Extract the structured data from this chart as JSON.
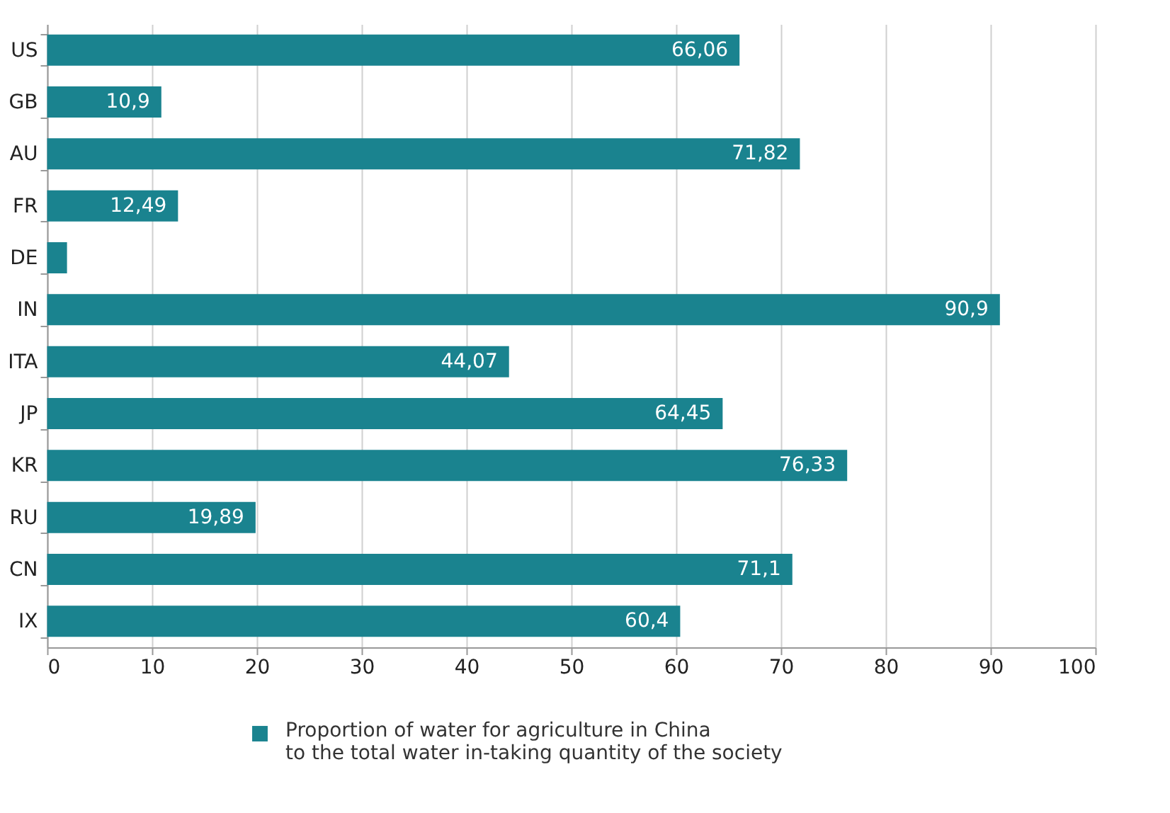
{
  "chart_data": {
    "type": "bar",
    "orientation": "horizontal",
    "categories": [
      "US",
      "GB",
      "AU",
      "FR",
      "DE",
      "IN",
      "ITA",
      "JP",
      "KR",
      "RU",
      "CN",
      "IX"
    ],
    "series": [
      {
        "name": "Proportion of water for agriculture in China\nto the total water in-taking quantity of the society",
        "color": "#1a838f",
        "values": [
          66.06,
          10.9,
          71.82,
          12.49,
          1.9,
          90.9,
          44.07,
          64.45,
          76.33,
          19.89,
          71.1,
          60.4
        ],
        "value_labels": [
          "66,06",
          "10,9",
          "71,82",
          "12,49",
          null,
          "90,9",
          "44,07",
          "64,45",
          "76,33",
          "19,89",
          "71,1",
          "60,4"
        ]
      }
    ],
    "xlim": [
      0,
      100
    ],
    "xticks": [
      0,
      10,
      20,
      30,
      40,
      50,
      60,
      70,
      80,
      90,
      100
    ],
    "grid": "x",
    "legend": "bottom"
  }
}
